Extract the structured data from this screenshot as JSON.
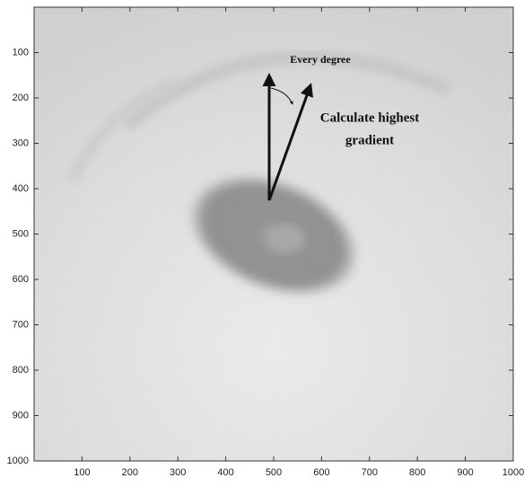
{
  "chart_data": {
    "type": "image",
    "xlim": [
      0,
      1000
    ],
    "ylim": [
      1000,
      0
    ],
    "xticks": [
      100,
      200,
      300,
      400,
      500,
      600,
      700,
      800,
      900,
      1000
    ],
    "yticks": [
      100,
      200,
      300,
      400,
      500,
      600,
      700,
      800,
      900,
      1000
    ],
    "grid": false,
    "annotations": [
      "Every degree",
      "Calculate highest",
      "gradient"
    ]
  }
}
